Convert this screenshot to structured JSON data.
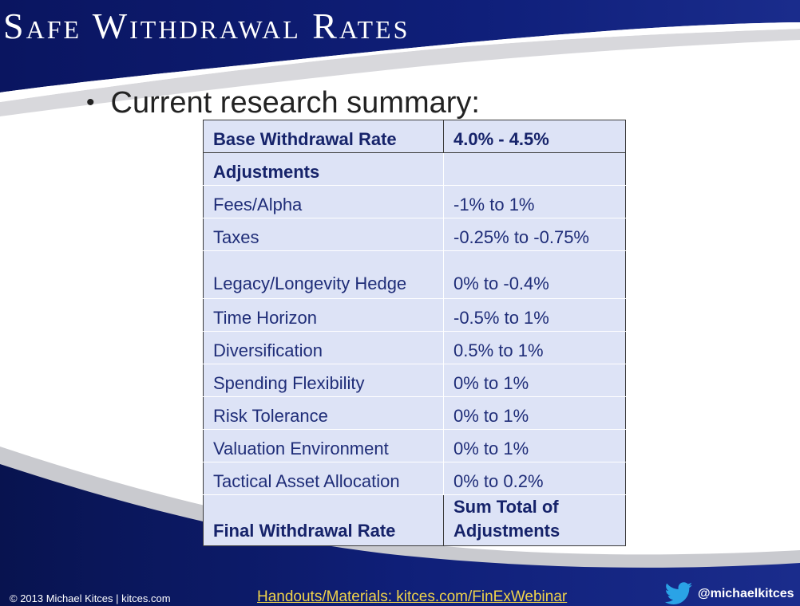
{
  "slide": {
    "title": "Safe Withdrawal Rates",
    "bullet": "Current research summary:",
    "bullet_marker": "•"
  },
  "table": {
    "rows": [
      {
        "label": "Base Withdrawal Rate",
        "value": "4.0% - 4.5%"
      },
      {
        "label": "Adjustments",
        "value": ""
      },
      {
        "label": "Fees/Alpha",
        "value": "-1% to 1%"
      },
      {
        "label": "Taxes",
        "value": "-0.25% to -0.75%"
      },
      {
        "label": "Legacy/Longevity Hedge",
        "value": "0% to -0.4%"
      },
      {
        "label": "Time Horizon",
        "value": "-0.5% to 1%"
      },
      {
        "label": "Diversification",
        "value": "0.5% to 1%"
      },
      {
        "label": "Spending Flexibility",
        "value": "0% to 1%"
      },
      {
        "label": "Risk Tolerance",
        "value": "0% to 1%"
      },
      {
        "label": "Valuation Environment",
        "value": "0% to 1%"
      },
      {
        "label": "Tactical Asset Allocation",
        "value": "0% to 0.2%"
      },
      {
        "label": "Final Withdrawal Rate",
        "value": "Sum Total of Adjustments"
      }
    ]
  },
  "footer": {
    "copyright": "© 2013 Michael Kitces  |  kitces.com",
    "handouts": "Handouts/Materials: kitces.com/FinExWebinar",
    "twitter_handle": "@michaelkitces",
    "twitter_icon": "twitter-bird-icon"
  },
  "colors": {
    "banner_navy": "#0c1a6b",
    "table_bg": "#dde3f6",
    "table_text": "#1f2d78",
    "footer_link": "#f1d44a"
  }
}
